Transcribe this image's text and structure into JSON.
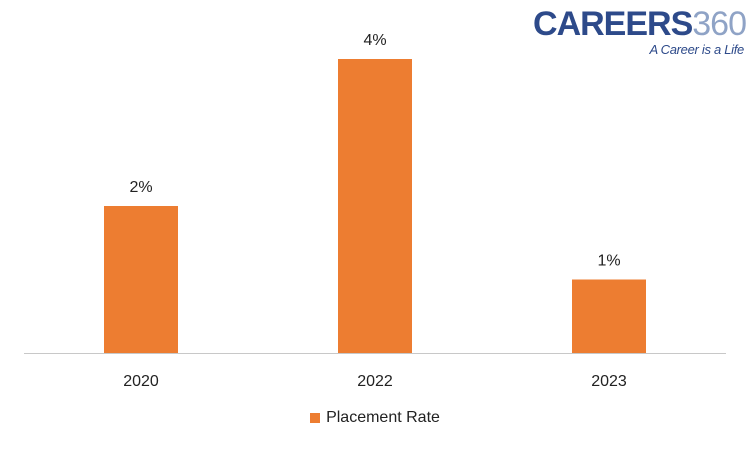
{
  "logo": {
    "brand_word": "CAREERS",
    "brand_number": "360",
    "tagline": "A Career is a Life"
  },
  "colors": {
    "bar": "#ed7d31",
    "axis": "#c8c8c8",
    "text": "#222222",
    "logo_primary": "#2d4a8a",
    "logo_secondary": "#8fa3c6"
  },
  "chart_data": {
    "type": "bar",
    "categories": [
      "2020",
      "2022",
      "2023"
    ],
    "series": [
      {
        "name": "Placement Rate",
        "values": [
          2,
          4,
          1
        ],
        "data_labels": [
          "2%",
          "4%",
          "1%"
        ]
      }
    ],
    "title": "",
    "xlabel": "",
    "ylabel": "",
    "ylim": [
      0,
      4
    ],
    "grid": false,
    "legend": "bottom-center"
  }
}
